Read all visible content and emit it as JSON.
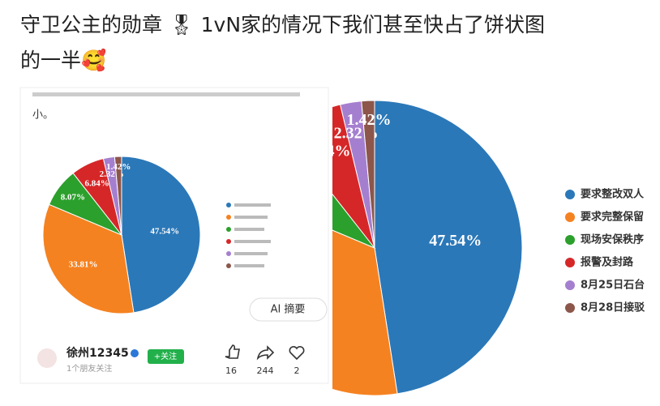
{
  "post": {
    "title_line1": "守卫公主的勋章 🎖 1vN家的情况下我们甚至快占了饼状图",
    "title_line2": "的一半🥰"
  },
  "embedded": {
    "text": "小。",
    "ai_button": "AI 摘要",
    "account": "徐州12345",
    "followers": "1个朋友关注",
    "follow": "+关注",
    "likes": "16",
    "shares": "244",
    "favorites": "2"
  },
  "pie": {
    "values": [
      47.54,
      33.81,
      8.07,
      6.84,
      2.32,
      1.42
    ],
    "value_labels": [
      "47.54%",
      "33.81%",
      "8.07%",
      "6.84%",
      "2.32%",
      "1.42%"
    ],
    "colors": [
      "#2b78b8",
      "#f58220",
      "#2ca02c",
      "#d62728",
      "#a57fcf",
      "#8c564b"
    ],
    "legend": [
      "要求整改双人",
      "要求完整保留",
      "现场安保秩序",
      "报警及封路",
      "8月25日石台",
      "8月28日接驳"
    ]
  }
}
